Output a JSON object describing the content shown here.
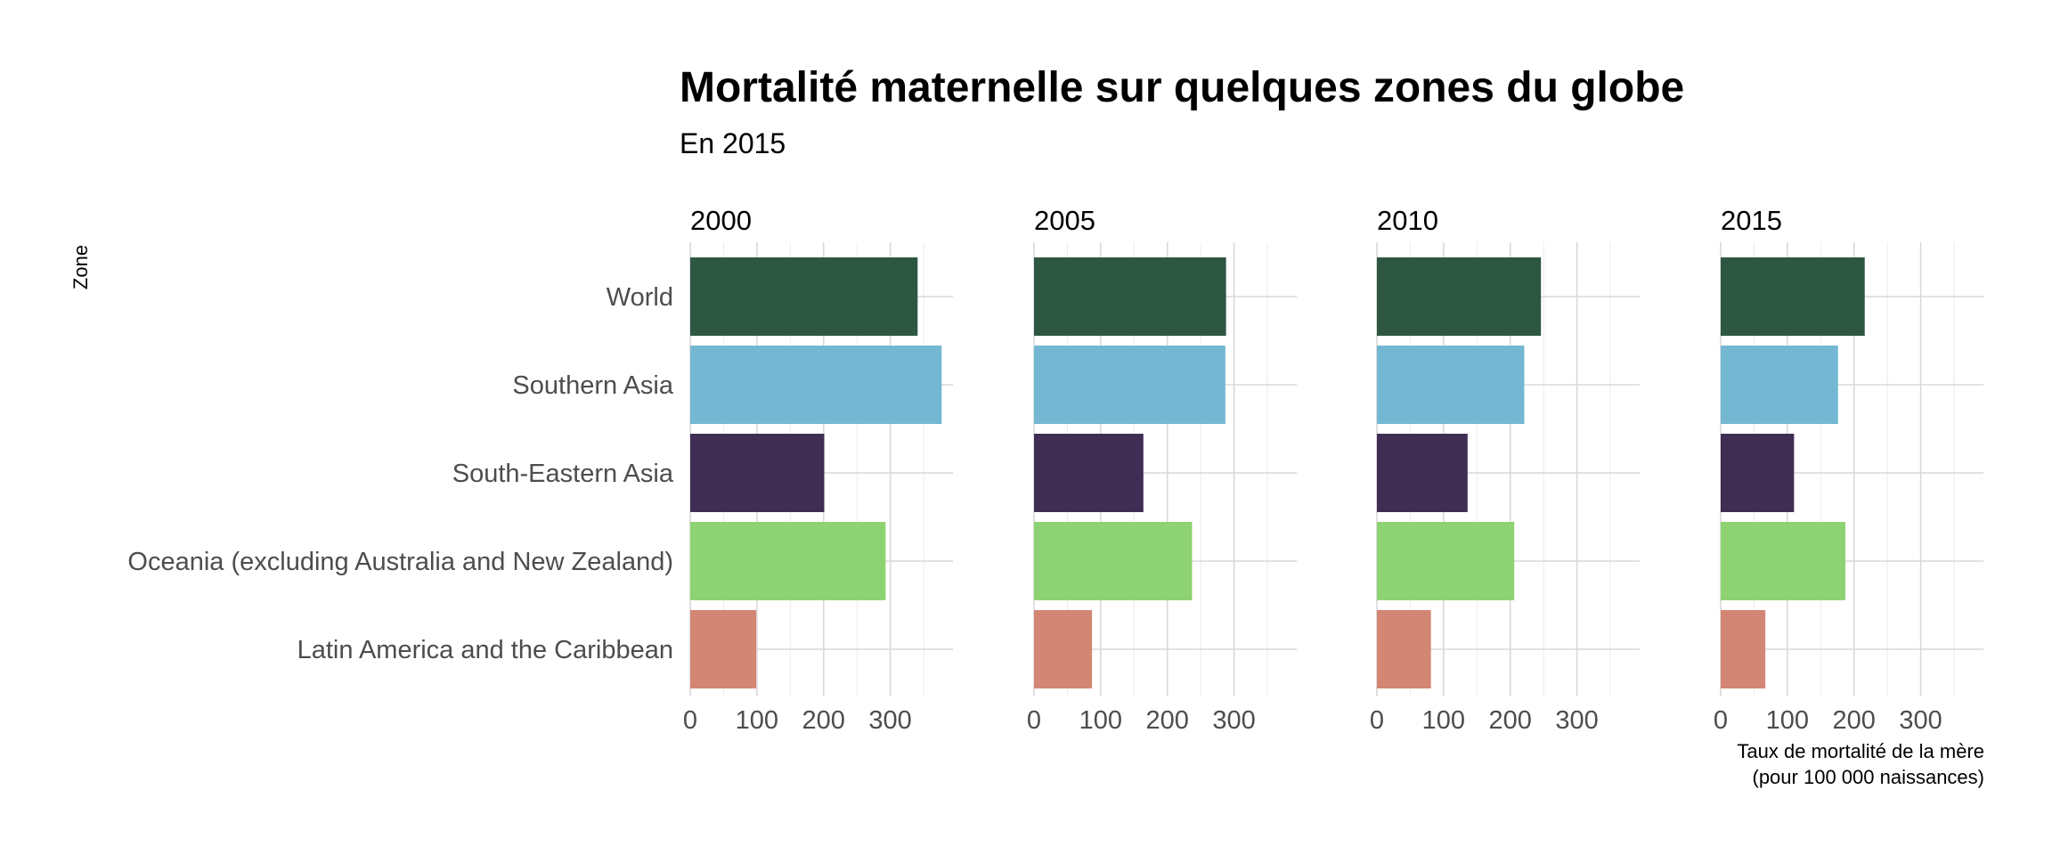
{
  "chart_data": {
    "type": "bar",
    "orientation": "horizontal",
    "title": "Mortalité maternelle sur quelques zones du globe",
    "subtitle": "En 2015",
    "ylabel": "Zone",
    "xlabel_line1": "Taux de mortalité de la mère",
    "xlabel_line2": "(pour 100 000 naissances)",
    "xlim": [
      0,
      394
    ],
    "x_ticks": [
      0,
      100,
      200,
      300
    ],
    "x_tick_labels": [
      "0",
      "100",
      "200",
      "300"
    ],
    "grid": true,
    "legend": "none",
    "categories": [
      "World",
      "Southern Asia",
      "South-Eastern Asia",
      "Oceania (excluding Australia and New Zealand)",
      "Latin America and the Caribbean"
    ],
    "colors": [
      "#2e5742",
      "#74b7d2",
      "#3f2d54",
      "#8dd273",
      "#d38674"
    ],
    "panels": [
      {
        "label": "2000",
        "values": [
          341,
          377,
          201,
          293,
          99
        ]
      },
      {
        "label": "2005",
        "values": [
          288,
          287,
          164,
          237,
          87
        ]
      },
      {
        "label": "2010",
        "values": [
          246,
          221,
          136,
          206,
          81
        ]
      },
      {
        "label": "2015",
        "values": [
          216,
          176,
          110,
          187,
          67
        ]
      }
    ]
  }
}
